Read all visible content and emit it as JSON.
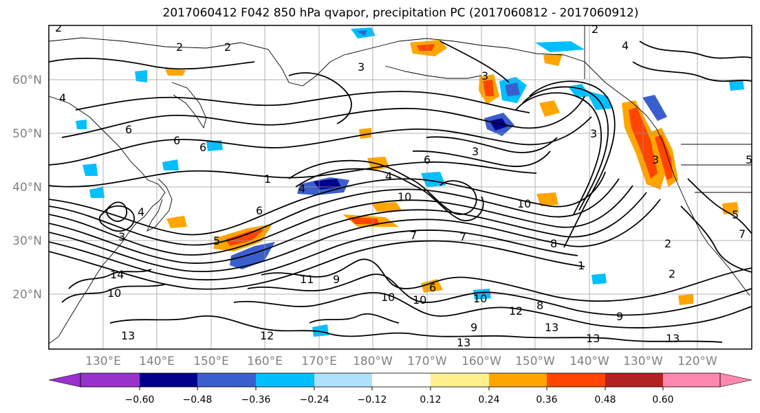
{
  "title": "2017060412 F042 850 hPa qvapor, precipitation PC (2017060812 - 2017060912)",
  "lat_labels": [
    "60°N",
    "50°N",
    "40°N",
    "30°N",
    "20°N"
  ],
  "lon_labels": [
    "130°E",
    "140°E",
    "150°E",
    "160°E",
    "170°E",
    "180°W",
    "170°W",
    "160°W",
    "150°W",
    "140°W",
    "130°W",
    "120°W"
  ],
  "colorbar": {
    "ticks": [
      "−0.60",
      "−0.48",
      "−0.36",
      "−0.24",
      "−0.12",
      "0.12",
      "0.24",
      "0.36",
      "0.48",
      "0.60"
    ],
    "colors": [
      "#9932cc",
      "#00008b",
      "#3a5fcd",
      "#00bfff",
      "#b0e2ff",
      "#ffffff",
      "#fff08c",
      "#ffa500",
      "#ff4500",
      "#b22222",
      "#ff88b0"
    ]
  },
  "contour_labels": [
    "2",
    "2",
    "2",
    "4",
    "3",
    "2",
    "4",
    "6",
    "6",
    "6",
    "6",
    "1",
    "4",
    "3",
    "4",
    "6",
    "10",
    "10",
    "4",
    "3",
    "5",
    "14",
    "10",
    "13",
    "10",
    "7",
    "7",
    "6",
    "8",
    "8",
    "10",
    "10",
    "12",
    "13",
    "9",
    "13",
    "13",
    "9",
    "11",
    "12",
    "9",
    "13",
    "5",
    "3",
    "2",
    "2",
    "3",
    "3",
    "7",
    "5",
    "1"
  ]
}
